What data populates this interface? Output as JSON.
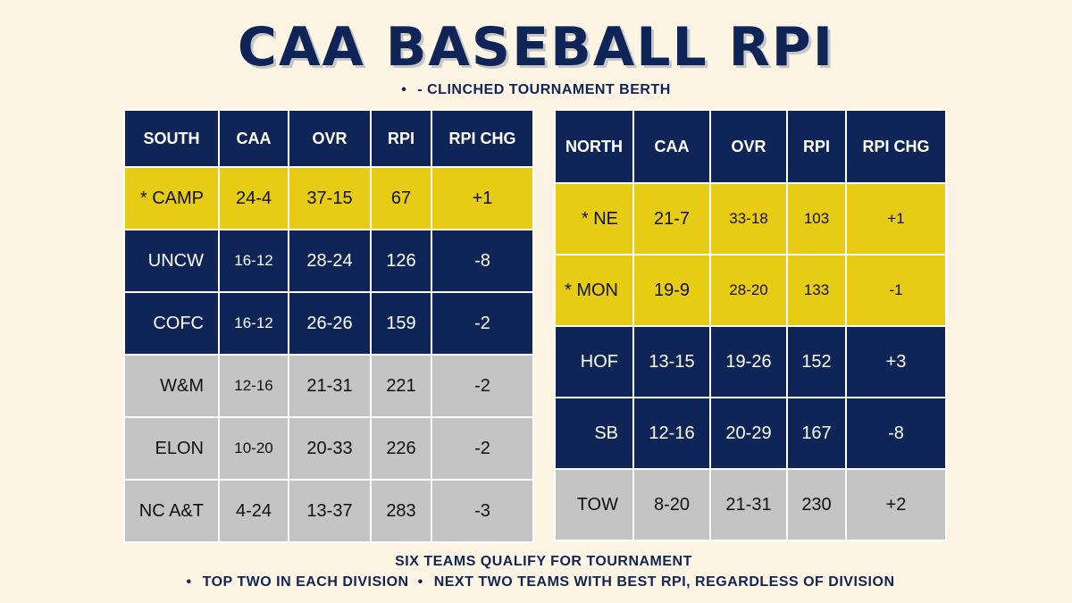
{
  "title": "CAA BASEBALL RPI",
  "legend": {
    "bullet": "•",
    "text": "- CLINCHED TOURNAMENT BERTH"
  },
  "south": {
    "headers": [
      "SOUTH",
      "CAA",
      "OVR",
      "RPI",
      "RPI CHG"
    ],
    "rows": [
      {
        "team": "* CAMP",
        "caa": "24-4",
        "ovr": "37-15",
        "rpi": "67",
        "chg": "+1",
        "status": "gold"
      },
      {
        "team": "UNCW",
        "caa": "16-12",
        "ovr": "28-24",
        "rpi": "126",
        "chg": "-8",
        "status": "navy"
      },
      {
        "team": "COFC",
        "caa": "16-12",
        "ovr": "26-26",
        "rpi": "159",
        "chg": "-2",
        "status": "navy"
      },
      {
        "team": "W&M",
        "caa": "12-16",
        "ovr": "21-31",
        "rpi": "221",
        "chg": "-2",
        "status": "gray"
      },
      {
        "team": "ELON",
        "caa": "10-20",
        "ovr": "20-33",
        "rpi": "226",
        "chg": "-2",
        "status": "gray"
      },
      {
        "team": "NC A&T",
        "caa": "4-24",
        "ovr": "13-37",
        "rpi": "283",
        "chg": "-3",
        "status": "gray"
      }
    ]
  },
  "north": {
    "headers": [
      "NORTH",
      "CAA",
      "OVR",
      "RPI",
      "RPI CHG"
    ],
    "rows": [
      {
        "team": "* NE",
        "caa": "21-7",
        "ovr": "33-18",
        "rpi": "103",
        "chg": "+1",
        "status": "gold"
      },
      {
        "team": "* MON",
        "caa": "19-9",
        "ovr": "28-20",
        "rpi": "133",
        "chg": "-1",
        "status": "gold"
      },
      {
        "team": "HOF",
        "caa": "13-15",
        "ovr": "19-26",
        "rpi": "152",
        "chg": "+3",
        "status": "navy"
      },
      {
        "team": "SB",
        "caa": "12-16",
        "ovr": "20-29",
        "rpi": "167",
        "chg": "-8",
        "status": "navy"
      },
      {
        "team": "TOW",
        "caa": "8-20",
        "ovr": "21-31",
        "rpi": "230",
        "chg": "+2",
        "status": "gray"
      }
    ]
  },
  "footer": {
    "line1": "SIX TEAMS QUALIFY FOR TOURNAMENT",
    "bullet": "•",
    "rule1": "TOP TWO IN EACH DIVISION",
    "rule2": "NEXT TWO TEAMS WITH BEST RPI, REGARDLESS OF DIVISION"
  },
  "colors": {
    "navy": "#0f2557",
    "gold": "#e6cc14",
    "gray": "#c4c4c4",
    "background": "#fdf4e3"
  }
}
